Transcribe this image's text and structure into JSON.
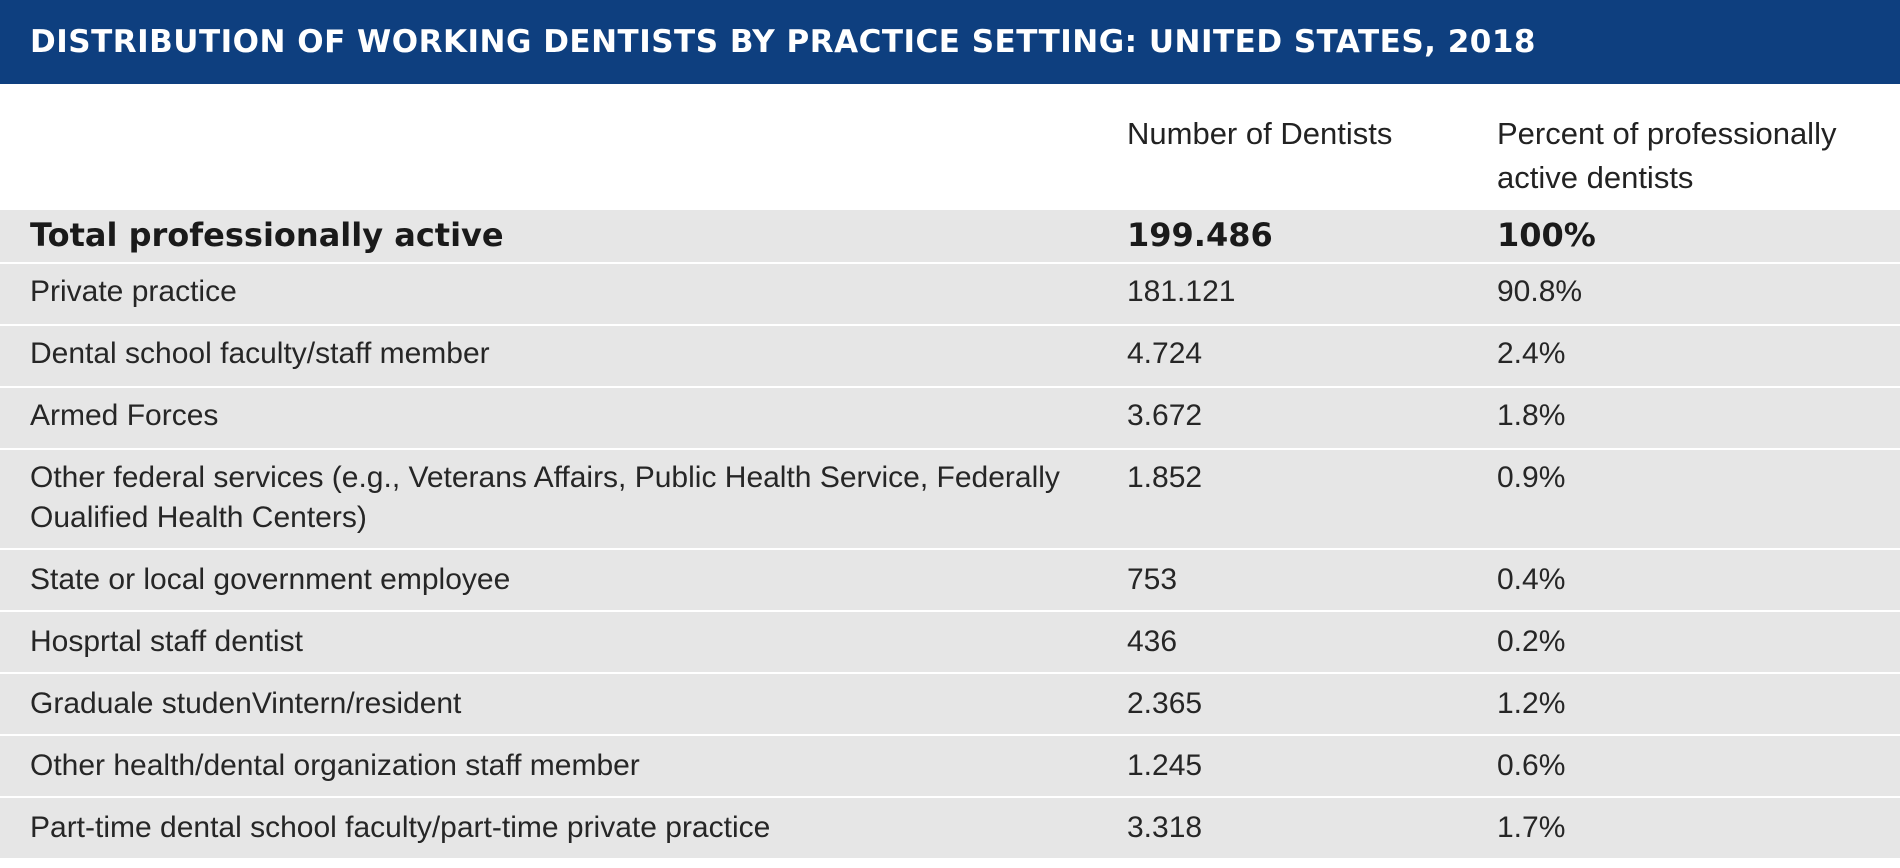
{
  "table": {
    "title": "DISTRIBUTION OF WORKING DENTISTS BY PRACTICE SETTING: UNITED STATES, 2018",
    "columns": [
      "",
      "Number of Dentists",
      "Percent of professionally active dentists"
    ],
    "rows": [
      {
        "setting": "Total professionally active",
        "number": "199.486",
        "percent": "100%"
      },
      {
        "setting": "Private practice",
        "number": "181.121",
        "percent": "90.8%"
      },
      {
        "setting": "Dental school faculty/staff member",
        "number": "4.724",
        "percent": "2.4%"
      },
      {
        "setting": "Armed Forces",
        "number": "3.672",
        "percent": "1.8%"
      },
      {
        "setting": "Other federal services (e.g., Veterans Affairs, Public Health Service, Federally Oualified Health Centers)",
        "number": "1.852",
        "percent": "0.9%"
      },
      {
        "setting": "State or local government employee",
        "number": "753",
        "percent": "0.4%"
      },
      {
        "setting": "Hosprtal staff dentist",
        "number": "436",
        "percent": "0.2%"
      },
      {
        "setting": "Graduale studenVintern/resident",
        "number": "2.365",
        "percent": "1.2%"
      },
      {
        "setting": "Other health/dental organization staff member",
        "number": "1.245",
        "percent": "0.6%"
      },
      {
        "setting": "Part-time dental school faculty/part-time private practice",
        "number": "3.318",
        "percent": "1.7%"
      }
    ]
  },
  "colors": {
    "title_bar": "#0e3f7f",
    "row_background": "#e6e6e6",
    "row_divider": "#ffffff"
  }
}
